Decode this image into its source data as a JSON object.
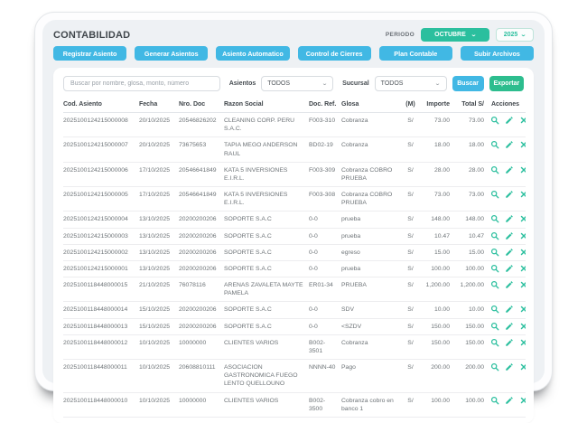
{
  "app": {
    "title": "CONTABILIDAD"
  },
  "period": {
    "label": "PERIODO",
    "month": "OCTUBRE",
    "year": "2025"
  },
  "nav_buttons": [
    "Registrar Asiento",
    "Generar Asientos",
    "Asiento Automatico",
    "Control de Cierres",
    "Plan Contable",
    "Subir Archivos"
  ],
  "filters": {
    "search_placeholder": "Buscar por nombre, glosa, monto, número",
    "asientos_label": "Asientos",
    "asientos_value": "TODOS",
    "sucursal_label": "Sucursal",
    "sucursal_value": "TODOS",
    "buscar_label": "Buscar",
    "exportar_label": "Exportar"
  },
  "table": {
    "headers": [
      "Cod. Asiento",
      "Fecha",
      "Nro. Doc",
      "Razon Social",
      "Doc. Ref.",
      "Glosa",
      "(M)",
      "Importe",
      "Total S/",
      "Acciones"
    ],
    "action_icons": [
      "search-icon",
      "edit-icon",
      "delete-icon"
    ],
    "rows": [
      {
        "cod": "2025100124215000008",
        "fecha": "20/10/2025",
        "nro_doc": "20546826202",
        "razon_social": "CLEANING CORP. PERU S.A.C.",
        "doc_ref": "F003-310",
        "glosa": "Cobranza",
        "moneda": "S/",
        "importe": "73.00",
        "total": "73.00"
      },
      {
        "cod": "2025100124215000007",
        "fecha": "20/10/2025",
        "nro_doc": "73675653",
        "razon_social": "TAPIA MEGO ANDERSON RAUL",
        "doc_ref": "BD02-19",
        "glosa": "Cobranza",
        "moneda": "S/",
        "importe": "18.00",
        "total": "18.00"
      },
      {
        "cod": "2025100124215000006",
        "fecha": "17/10/2025",
        "nro_doc": "20546641849",
        "razon_social": "KATA 5 INVERSIONES E.I.R.L.",
        "doc_ref": "F003-309",
        "glosa": "Cobranza COBRO PRUEBA",
        "moneda": "S/",
        "importe": "28.00",
        "total": "28.00"
      },
      {
        "cod": "2025100124215000005",
        "fecha": "17/10/2025",
        "nro_doc": "20546641849",
        "razon_social": "KATA 5 INVERSIONES E.I.R.L.",
        "doc_ref": "F003-308",
        "glosa": "Cobranza COBRO PRUEBA",
        "moneda": "S/",
        "importe": "73.00",
        "total": "73.00"
      },
      {
        "cod": "2025100124215000004",
        "fecha": "13/10/2025",
        "nro_doc": "20200200206",
        "razon_social": "SOPORTE S.A.C",
        "doc_ref": "0-0",
        "glosa": "prueba",
        "moneda": "S/",
        "importe": "148.00",
        "total": "148.00"
      },
      {
        "cod": "2025100124215000003",
        "fecha": "13/10/2025",
        "nro_doc": "20200200206",
        "razon_social": "SOPORTE S.A.C",
        "doc_ref": "0-0",
        "glosa": "prueba",
        "moneda": "S/",
        "importe": "10.47",
        "total": "10.47"
      },
      {
        "cod": "2025100124215000002",
        "fecha": "13/10/2025",
        "nro_doc": "20200200206",
        "razon_social": "SOPORTE S.A.C",
        "doc_ref": "0-0",
        "glosa": "egreso",
        "moneda": "S/",
        "importe": "15.00",
        "total": "15.00"
      },
      {
        "cod": "2025100124215000001",
        "fecha": "13/10/2025",
        "nro_doc": "20200200206",
        "razon_social": "SOPORTE S.A.C",
        "doc_ref": "0-0",
        "glosa": "prueba",
        "moneda": "S/",
        "importe": "100.00",
        "total": "100.00"
      },
      {
        "cod": "2025100118448000015",
        "fecha": "21/10/2025",
        "nro_doc": "76078116",
        "razon_social": "ARENAS ZAVALETA MAYTE PAMELA",
        "doc_ref": "ER01-34",
        "glosa": "PRUEBA",
        "moneda": "S/",
        "importe": "1,200.00",
        "total": "1,200.00"
      },
      {
        "cod": "2025100118448000014",
        "fecha": "15/10/2025",
        "nro_doc": "20200200206",
        "razon_social": "SOPORTE S.A.C",
        "doc_ref": "0-0",
        "glosa": "SDV",
        "moneda": "S/",
        "importe": "10.00",
        "total": "10.00"
      },
      {
        "cod": "2025100118448000013",
        "fecha": "15/10/2025",
        "nro_doc": "20200200206",
        "razon_social": "SOPORTE S.A.C",
        "doc_ref": "0-0",
        "glosa": "<SZDV",
        "moneda": "S/",
        "importe": "150.00",
        "total": "150.00"
      },
      {
        "cod": "2025100118448000012",
        "fecha": "10/10/2025",
        "nro_doc": "10000000",
        "razon_social": "CLIENTES VARIOS",
        "doc_ref": "B002-3501",
        "glosa": "Cobranza",
        "moneda": "S/",
        "importe": "150.00",
        "total": "150.00"
      },
      {
        "cod": "2025100118448000011",
        "fecha": "10/10/2025",
        "nro_doc": "20608810111",
        "razon_social": "ASOCIACION GASTRONOMICA FUEGO LENTO QUELLOUNO",
        "doc_ref": "NNNN-40",
        "glosa": "Pago",
        "moneda": "S/",
        "importe": "200.00",
        "total": "200.00"
      },
      {
        "cod": "2025100118448000010",
        "fecha": "10/10/2025",
        "nro_doc": "10000000",
        "razon_social": "CLIENTES VARIOS",
        "doc_ref": "B002-3500",
        "glosa": "Cobranza cobro en banco 1",
        "moneda": "S/",
        "importe": "100.00",
        "total": "100.00"
      }
    ]
  },
  "colors": {
    "primary_blue": "#41b8e4",
    "accent_green": "#2bbf9e",
    "export_green": "#2dbd8e"
  }
}
